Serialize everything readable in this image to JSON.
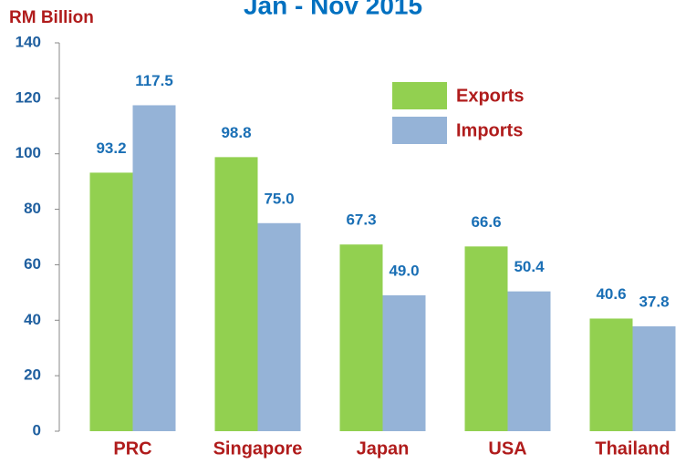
{
  "chart_data": {
    "type": "bar",
    "title": "Jan - Nov 2015",
    "y_label": "RM Billion",
    "categories": [
      "PRC",
      "Singapore",
      "Japan",
      "USA",
      "Thailand"
    ],
    "series": [
      {
        "name": "Exports",
        "color": "#92d050",
        "values": [
          93.2,
          98.8,
          67.3,
          66.6,
          40.6
        ],
        "value_labels": [
          "93.2",
          "98.8",
          "67.3",
          "66.6",
          "40.6"
        ]
      },
      {
        "name": "Imports",
        "color": "#95b3d7",
        "values": [
          117.5,
          75.0,
          49.0,
          50.4,
          37.8
        ],
        "value_labels": [
          "117.5",
          "75.0",
          "49.0",
          "50.4",
          "37.8"
        ]
      }
    ],
    "ylim": [
      0,
      140
    ],
    "yticks": [
      0,
      20,
      40,
      60,
      80,
      100,
      120,
      140
    ],
    "legend": "upper right"
  }
}
